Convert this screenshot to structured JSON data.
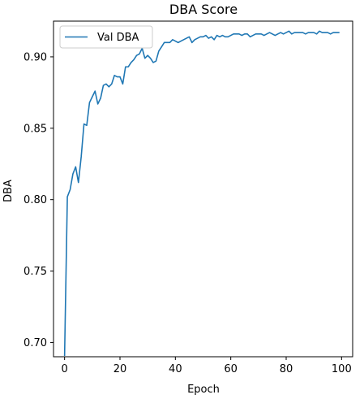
{
  "chart_data": {
    "type": "line",
    "title": "DBA Score",
    "xlabel": "Epoch",
    "ylabel": "DBA",
    "xlim": [
      -4,
      104
    ],
    "ylim": [
      0.69,
      0.925
    ],
    "xticks": [
      0,
      20,
      40,
      60,
      80,
      100
    ],
    "yticks": [
      0.7,
      0.75,
      0.8,
      0.85,
      0.9
    ],
    "xtick_labels": [
      "0",
      "20",
      "40",
      "60",
      "80",
      "100"
    ],
    "ytick_labels": [
      "0.70",
      "0.75",
      "0.80",
      "0.85",
      "0.90"
    ],
    "grid": false,
    "legend": {
      "position": "top-left"
    },
    "series": [
      {
        "name": "Val DBA",
        "color": "#1f77b4",
        "x": [
          0,
          1,
          2,
          3,
          4,
          5,
          6,
          7,
          8,
          9,
          10,
          11,
          12,
          13,
          14,
          15,
          16,
          17,
          18,
          19,
          20,
          21,
          22,
          23,
          24,
          25,
          26,
          27,
          28,
          29,
          30,
          31,
          32,
          33,
          34,
          35,
          36,
          37,
          38,
          39,
          40,
          41,
          42,
          43,
          44,
          45,
          46,
          47,
          48,
          49,
          50,
          51,
          52,
          53,
          54,
          55,
          56,
          57,
          58,
          59,
          60,
          61,
          62,
          63,
          64,
          65,
          66,
          67,
          68,
          69,
          70,
          71,
          72,
          73,
          74,
          75,
          76,
          77,
          78,
          79,
          80,
          81,
          82,
          83,
          84,
          85,
          86,
          87,
          88,
          89,
          90,
          91,
          92,
          93,
          94,
          95,
          96,
          97,
          98,
          99
        ],
        "y": [
          0.691,
          0.802,
          0.807,
          0.818,
          0.823,
          0.812,
          0.83,
          0.853,
          0.852,
          0.868,
          0.872,
          0.876,
          0.867,
          0.871,
          0.88,
          0.881,
          0.879,
          0.881,
          0.887,
          0.886,
          0.886,
          0.881,
          0.893,
          0.893,
          0.896,
          0.898,
          0.901,
          0.902,
          0.906,
          0.899,
          0.901,
          0.899,
          0.896,
          0.897,
          0.904,
          0.907,
          0.91,
          0.91,
          0.91,
          0.912,
          0.911,
          0.91,
          0.911,
          0.912,
          0.913,
          0.914,
          0.91,
          0.912,
          0.913,
          0.914,
          0.914,
          0.915,
          0.913,
          0.914,
          0.912,
          0.915,
          0.914,
          0.915,
          0.914,
          0.914,
          0.915,
          0.916,
          0.916,
          0.916,
          0.915,
          0.916,
          0.916,
          0.914,
          0.915,
          0.916,
          0.916,
          0.916,
          0.915,
          0.916,
          0.917,
          0.916,
          0.915,
          0.916,
          0.917,
          0.916,
          0.917,
          0.918,
          0.916,
          0.917,
          0.917,
          0.917,
          0.917,
          0.916,
          0.917,
          0.917,
          0.917,
          0.916,
          0.918,
          0.917,
          0.917,
          0.917,
          0.916,
          0.917,
          0.917,
          0.917
        ]
      }
    ]
  }
}
